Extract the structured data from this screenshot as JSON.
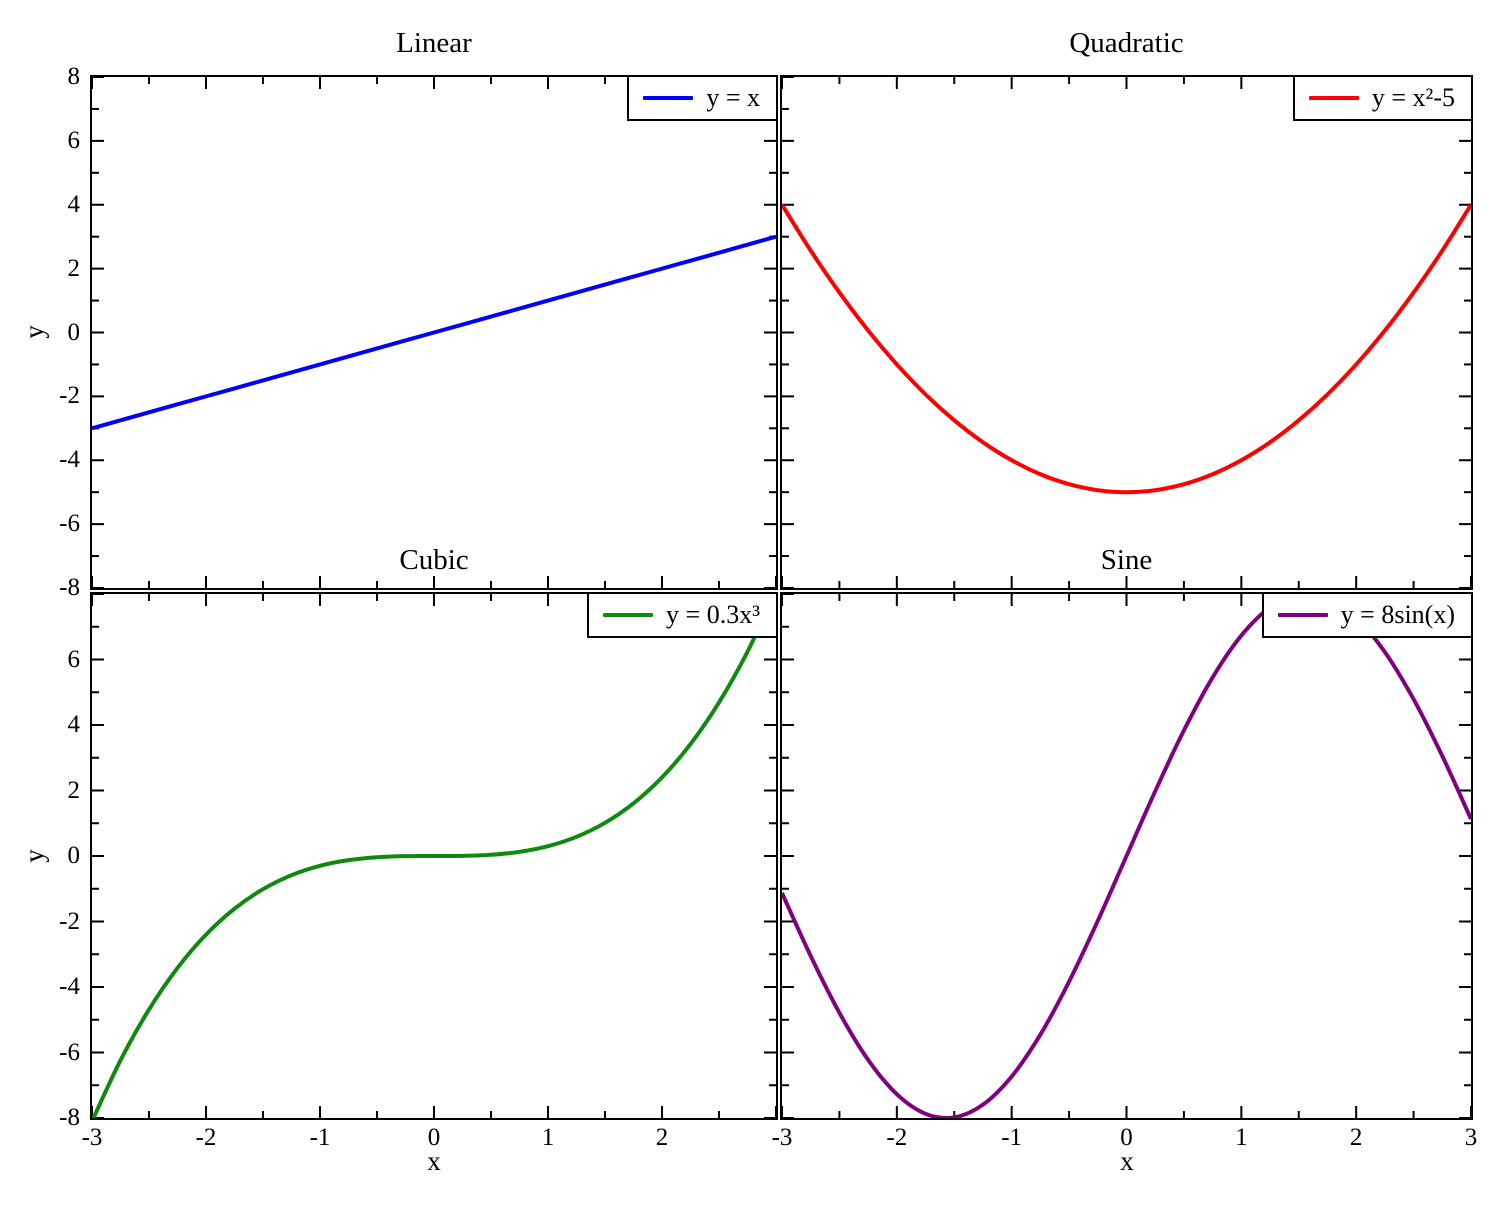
{
  "figure": {
    "background": "#ffffff",
    "axis_color": "#000000",
    "text_color": "#000000"
  },
  "chart_data": {
    "type": "line",
    "layout": "2x2-multiplot",
    "xlim": [
      -3,
      3
    ],
    "ylim": [
      -8,
      8
    ],
    "x_tick_step": 1,
    "x_minor_step": 0.5,
    "y_tick_step": 2,
    "y_minor_step": 1,
    "grid": false,
    "legend_position": "top-right",
    "x_samples": [
      -3,
      -2.75,
      -2.5,
      -2.25,
      -2,
      -1.75,
      -1.5,
      -1.25,
      -1,
      -0.75,
      -0.5,
      -0.25,
      0,
      0.25,
      0.5,
      0.75,
      1,
      1.25,
      1.5,
      1.75,
      2,
      2.25,
      2.5,
      2.75,
      3
    ],
    "panels": [
      {
        "title": "Linear",
        "legend_label": "y = x",
        "color": "#0000ff",
        "ylabel": "y",
        "xlabel": "",
        "y_tick_labels": [
          "8",
          "6",
          "4",
          "2",
          "0",
          "-2",
          "-4",
          "-6",
          "-8"
        ],
        "x_tick_labels": [],
        "y_values": [
          -3,
          -2.75,
          -2.5,
          -2.25,
          -2,
          -1.75,
          -1.5,
          -1.25,
          -1,
          -0.75,
          -0.5,
          -0.25,
          0,
          0.25,
          0.5,
          0.75,
          1,
          1.25,
          1.5,
          1.75,
          2,
          2.25,
          2.5,
          2.75,
          3
        ]
      },
      {
        "title": "Quadratic",
        "legend_label": "y = x²-5",
        "color": "#ff0000",
        "ylabel": "",
        "xlabel": "",
        "y_tick_labels": [],
        "x_tick_labels": [],
        "y_values": [
          4,
          2.563,
          1.25,
          0.063,
          -1,
          -1.938,
          -2.75,
          -3.438,
          -4,
          -4.438,
          -4.75,
          -4.938,
          -5,
          -4.938,
          -4.75,
          -4.438,
          -4,
          -3.438,
          -2.75,
          -1.938,
          -1,
          0.063,
          1.25,
          2.563,
          4
        ]
      },
      {
        "title": "Cubic",
        "legend_label": "y = 0.3x³",
        "color": "#0f8a0f",
        "ylabel": "y",
        "xlabel": "x",
        "y_tick_labels": [
          "6",
          "4",
          "2",
          "0",
          "-2",
          "-4",
          "-6",
          "-8"
        ],
        "x_tick_labels": [
          "-3",
          "-2",
          "-1",
          "0",
          "1",
          "2"
        ],
        "y_values": [
          -8.1,
          -6.239,
          -4.688,
          -3.417,
          -2.4,
          -1.608,
          -1.013,
          -0.586,
          -0.3,
          -0.127,
          -0.038,
          -0.005,
          0,
          0.005,
          0.038,
          0.127,
          0.3,
          0.586,
          1.013,
          1.608,
          2.4,
          3.417,
          4.688,
          6.239,
          8.1
        ]
      },
      {
        "title": "Sine",
        "legend_label": "y = 8sin(x)",
        "color": "#800080",
        "ylabel": "",
        "xlabel": "x",
        "y_tick_labels": [],
        "x_tick_labels": [
          "-3",
          "-2",
          "-1",
          "0",
          "1",
          "2",
          "3"
        ],
        "y_values": [
          -1.129,
          -3.053,
          -4.788,
          -6.225,
          -7.274,
          -7.872,
          -7.98,
          -7.592,
          -6.732,
          -5.453,
          -3.835,
          -1.979,
          0,
          1.979,
          3.835,
          5.453,
          6.732,
          7.592,
          7.98,
          7.872,
          7.274,
          6.225,
          4.788,
          3.053,
          1.129
        ]
      }
    ]
  }
}
